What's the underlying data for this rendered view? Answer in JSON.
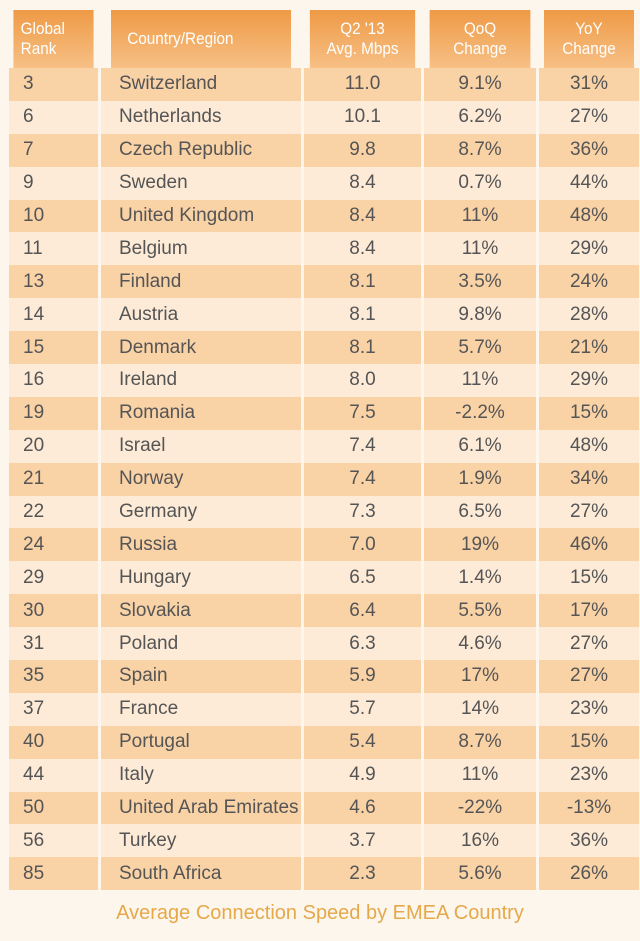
{
  "chart_data": {
    "type": "table",
    "title": "Average Connection Speed by EMEA Country",
    "columns": [
      "Global Rank",
      "Country/Region",
      "Q2 '13 Avg. Mbps",
      "QoQ Change",
      "YoY Change"
    ],
    "rows": [
      [
        "3",
        "Switzerland",
        "11.0",
        "9.1%",
        "31%"
      ],
      [
        "6",
        "Netherlands",
        "10.1",
        "6.2%",
        "27%"
      ],
      [
        "7",
        "Czech Republic",
        "9.8",
        "8.7%",
        "36%"
      ],
      [
        "9",
        "Sweden",
        "8.4",
        "0.7%",
        "44%"
      ],
      [
        "10",
        "United Kingdom",
        "8.4",
        "11%",
        "48%"
      ],
      [
        "11",
        "Belgium",
        "8.4",
        "11%",
        "29%"
      ],
      [
        "13",
        "Finland",
        "8.1",
        "3.5%",
        "24%"
      ],
      [
        "14",
        "Austria",
        "8.1",
        "9.8%",
        "28%"
      ],
      [
        "15",
        "Denmark",
        "8.1",
        "5.7%",
        "21%"
      ],
      [
        "16",
        "Ireland",
        "8.0",
        "11%",
        "29%"
      ],
      [
        "19",
        "Romania",
        "7.5",
        "-2.2%",
        "15%"
      ],
      [
        "20",
        "Israel",
        "7.4",
        "6.1%",
        "48%"
      ],
      [
        "21",
        "Norway",
        "7.4",
        "1.9%",
        "34%"
      ],
      [
        "22",
        "Germany",
        "7.3",
        "6.5%",
        "27%"
      ],
      [
        "24",
        "Russia",
        "7.0",
        "19%",
        "46%"
      ],
      [
        "29",
        "Hungary",
        "6.5",
        "1.4%",
        "15%"
      ],
      [
        "30",
        "Slovakia",
        "6.4",
        "5.5%",
        "17%"
      ],
      [
        "31",
        "Poland",
        "6.3",
        "4.6%",
        "27%"
      ],
      [
        "35",
        "Spain",
        "5.9",
        "17%",
        "27%"
      ],
      [
        "37",
        "France",
        "5.7",
        "14%",
        "23%"
      ],
      [
        "40",
        "Portugal",
        "5.4",
        "8.7%",
        "15%"
      ],
      [
        "44",
        "Italy",
        "4.9",
        "11%",
        "23%"
      ],
      [
        "50",
        "United Arab Emirates",
        "4.6",
        "-22%",
        "-13%"
      ],
      [
        "56",
        "Turkey",
        "3.7",
        "16%",
        "36%"
      ],
      [
        "85",
        "South Africa",
        "2.3",
        "5.6%",
        "26%"
      ]
    ]
  },
  "header": {
    "rank_line1": "Global",
    "rank_line2": "Rank",
    "country": "Country/Region",
    "mbps_line1": "Q2 '13",
    "mbps_line2": "Avg. Mbps",
    "qoq_line1": "QoQ",
    "qoq_line2": "Change",
    "yoy_line1": "YoY",
    "yoy_line2": "Change"
  },
  "colors": {
    "header": "#ee9a45",
    "row_odd": "#f9d2a6",
    "row_even": "#fdebd7",
    "caption": "#e5a84a",
    "text": "#555555"
  }
}
